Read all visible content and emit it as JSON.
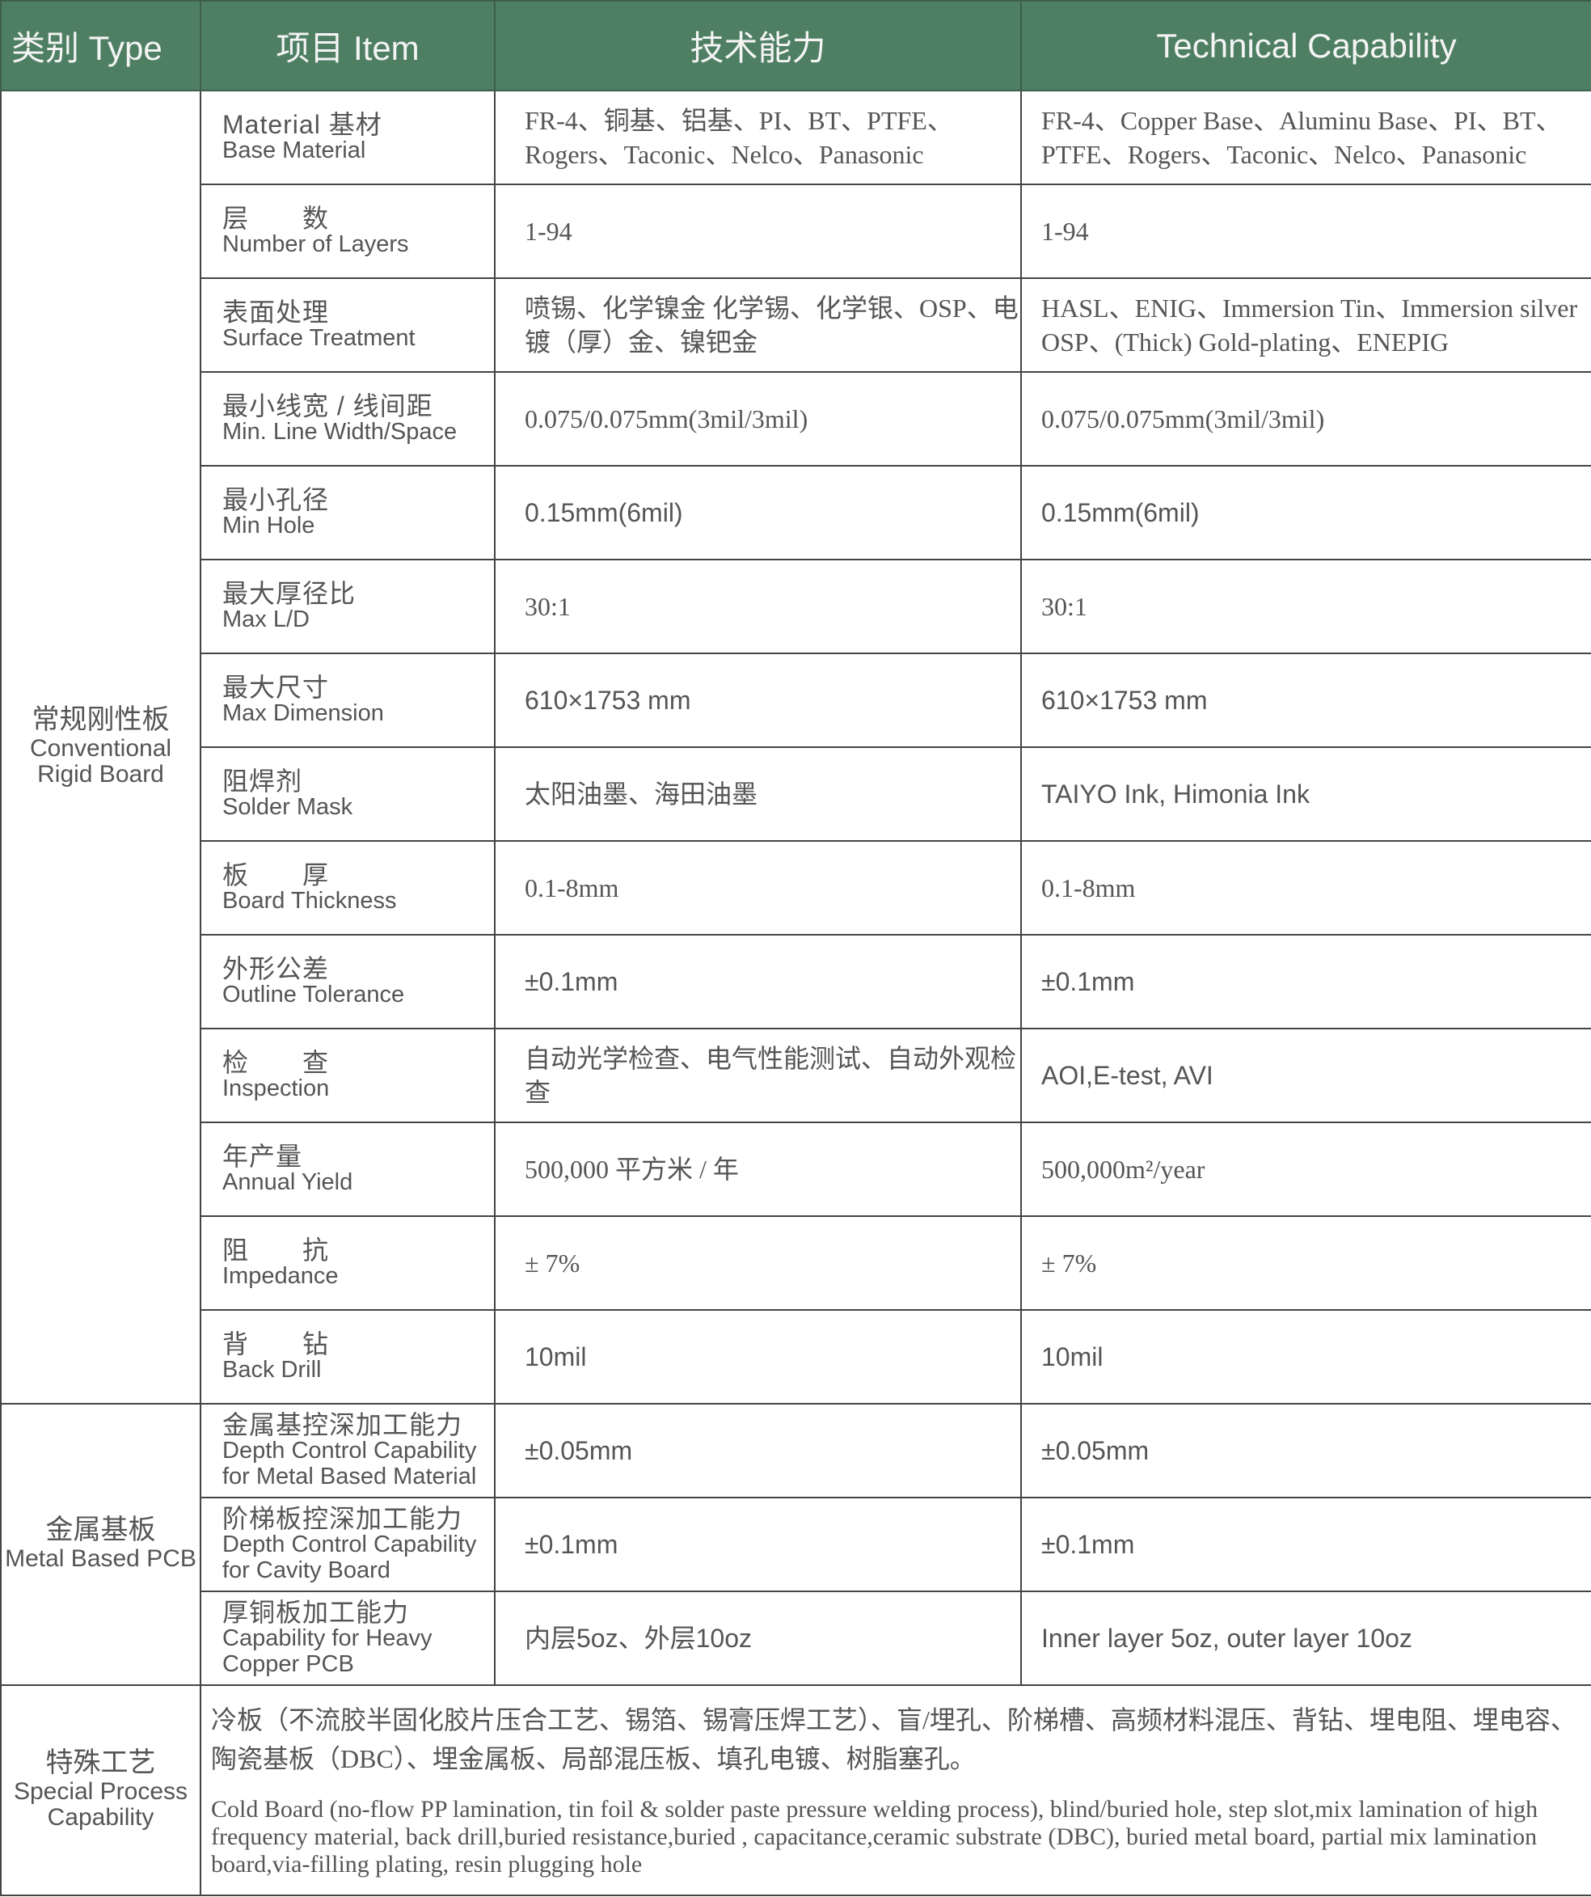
{
  "header": {
    "type": "类别 Type",
    "item": "项目 Item",
    "capability_zh": "技术能力",
    "capability_en": "Technical Capability"
  },
  "header_color": "#4e7f63",
  "groups": [
    {
      "category_zh": "常规刚性板",
      "category_en": "Conventional Rigid Board",
      "rows": [
        {
          "item_zh": "Material 基材",
          "item_en": "Base Material",
          "zh": "FR-4、铜基、铝基、PI、BT、PTFE、Rogers、Taconic、Nelco、Panasonic",
          "en": "FR-4、Copper Base、Aluminu Base、PI、BT、PTFE、Rogers、Taconic、Nelco、Panasonic"
        },
        {
          "item_zh": "层　　数",
          "item_en": "Number of Layers",
          "zh": "1-94",
          "en": "1-94"
        },
        {
          "item_zh": "表面处理",
          "item_en": "Surface Treatment",
          "zh": "喷锡、化学镍金 化学锡、化学银、OSP、电镀（厚）金、镍钯金",
          "en": "HASL、ENIG、Immersion Tin、Immersion silver OSP、(Thick) Gold-plating、ENEPIG"
        },
        {
          "item_zh": "最小线宽 / 线间距",
          "item_en": "Min. Line Width/Space",
          "zh": "0.075/0.075mm(3mil/3mil)",
          "en": "0.075/0.075mm(3mil/3mil)"
        },
        {
          "item_zh": "最小孔径",
          "item_en": "Min Hole",
          "zh": "0.15mm(6mil)",
          "en": "0.15mm(6mil)",
          "sans": true
        },
        {
          "item_zh": "最大厚径比",
          "item_en": "Max L/D",
          "zh": "30:1",
          "en": "30:1"
        },
        {
          "item_zh": "最大尺寸",
          "item_en": "Max Dimension",
          "zh": "610×1753 mm",
          "en": "610×1753 mm",
          "sans": true
        },
        {
          "item_zh": "阻焊剂",
          "item_en": "Solder Mask",
          "zh": "太阳油墨、海田油墨",
          "en": "TAIYO Ink, Himonia Ink",
          "sans": true
        },
        {
          "item_zh": "板　　厚",
          "item_en": "Board Thickness",
          "zh": "0.1-8mm",
          "en": "0.1-8mm"
        },
        {
          "item_zh": "外形公差",
          "item_en": "Outline Tolerance",
          "zh": "±0.1mm",
          "en": "±0.1mm",
          "sans": true
        },
        {
          "item_zh": "检　　查",
          "item_en": "Inspection",
          "zh": "自动光学检查、电气性能测试、自动外观检查",
          "en": "AOI,E-test, AVI",
          "sans": true
        },
        {
          "item_zh": "年产量",
          "item_en": "Annual Yield",
          "zh": "500,000 平方米 / 年",
          "en": "500,000m²/year"
        },
        {
          "item_zh": "阻　　抗",
          "item_en": "Impedance",
          "zh": "± 7%",
          "en": "± 7%"
        },
        {
          "item_zh": "背　　钻",
          "item_en": "Back Drill",
          "zh": "10mil",
          "en": "10mil",
          "sans": true
        }
      ]
    },
    {
      "category_zh": "金属基板",
      "category_en": "Metal Based PCB",
      "rows": [
        {
          "item_zh": "金属基控深加工能力",
          "item_en": "Depth Control Capability for Metal Based Material",
          "zh": "±0.05mm",
          "en": "±0.05mm",
          "sans": true
        },
        {
          "item_zh": "阶梯板控深加工能力",
          "item_en": "Depth Control Capability for Cavity Board",
          "zh": "±0.1mm",
          "en": "±0.1mm",
          "sans": true
        },
        {
          "item_zh": "厚铜板加工能力",
          "item_en": "Capability for Heavy Copper PCB",
          "zh": "内层5oz、外层10oz",
          "en": "Inner layer 5oz, outer layer 10oz",
          "sans": true
        }
      ]
    }
  ],
  "special": {
    "category_zh": "特殊工艺",
    "category_en": "Special Process Capability",
    "zh": "冷板（不流胶半固化胶片压合工艺、锡箔、锡膏压焊工艺）、盲/埋孔、阶梯槽、高频材料混压、背钻、埋电阻、埋电容、陶瓷基板（DBC）、埋金属板、局部混压板、填孔电镀、树脂塞孔。",
    "en": "Cold Board (no-flow PP lamination, tin foil & solder paste pressure welding process), blind/buried hole, step slot,mix lamination of high frequency material, back drill,buried resistance,buried , capacitance,ceramic substrate (DBC), buried metal board, partial mix lamination board,via-filling plating, resin plugging hole"
  }
}
